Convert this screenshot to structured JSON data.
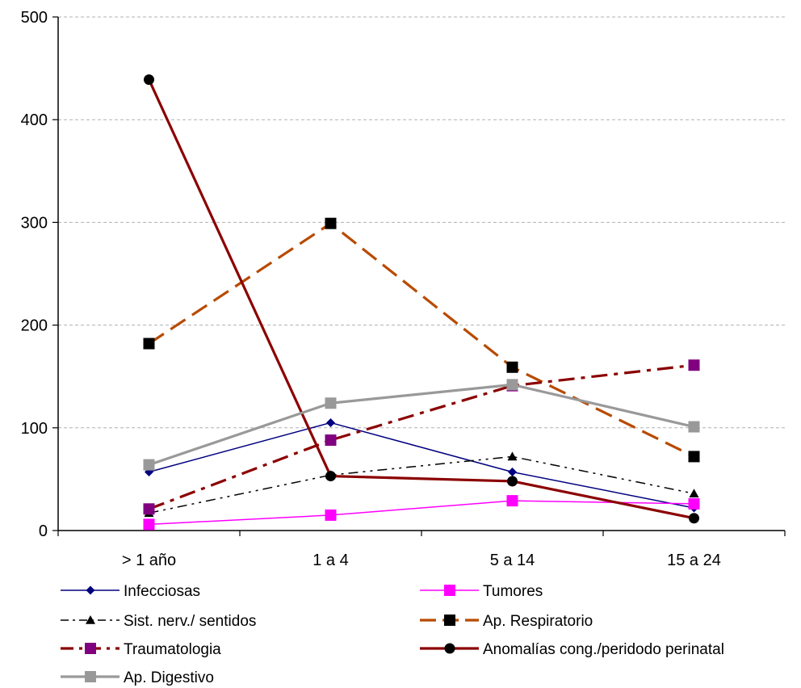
{
  "chart_data": {
    "type": "line",
    "title": "",
    "xlabel": "",
    "ylabel": "",
    "categories": [
      "> 1 año",
      "1 a 4",
      "5 a 14",
      "15 a 24"
    ],
    "ylim": [
      0,
      500
    ],
    "yticks": [
      "0",
      "100",
      "200",
      "300",
      "400",
      "500"
    ],
    "grid": "horizontal dashed",
    "legend_position": "bottom",
    "series": [
      {
        "name": "Infecciosas",
        "values": [
          57,
          105,
          57,
          22
        ],
        "color": "#000080",
        "dash": "solid",
        "marker": "diamond",
        "marker_color": "#000080"
      },
      {
        "name": "Tumores",
        "values": [
          6,
          15,
          29,
          26
        ],
        "color": "#ff00ff",
        "dash": "solid",
        "marker": "square",
        "marker_color": "#ff00ff"
      },
      {
        "name": "Sist. nerv./ sentidos",
        "values": [
          17,
          54,
          72,
          36
        ],
        "color": "#000000",
        "dash": "dashdotdot",
        "marker": "triangle",
        "marker_color": "#000000"
      },
      {
        "name": "Ap. Respiratorio",
        "values": [
          182,
          299,
          159,
          72
        ],
        "color": "#b84a00",
        "dash": "longdash",
        "marker": "square",
        "marker_color": "#000000"
      },
      {
        "name": "Traumatologia",
        "values": [
          21,
          88,
          141,
          161
        ],
        "color": "#8b0000",
        "dash": "dashdot",
        "marker": "square",
        "marker_color": "#800080"
      },
      {
        "name": "Anomalías cong./peridodo perinatal",
        "values": [
          439,
          53,
          48,
          12
        ],
        "color": "#8b0000",
        "dash": "solid",
        "marker": "circle",
        "marker_color": "#000000"
      },
      {
        "name": "Ap. Digestivo",
        "values": [
          64,
          124,
          142,
          101
        ],
        "color": "#999999",
        "dash": "solid",
        "marker": "square",
        "marker_color": "#999999"
      }
    ]
  }
}
